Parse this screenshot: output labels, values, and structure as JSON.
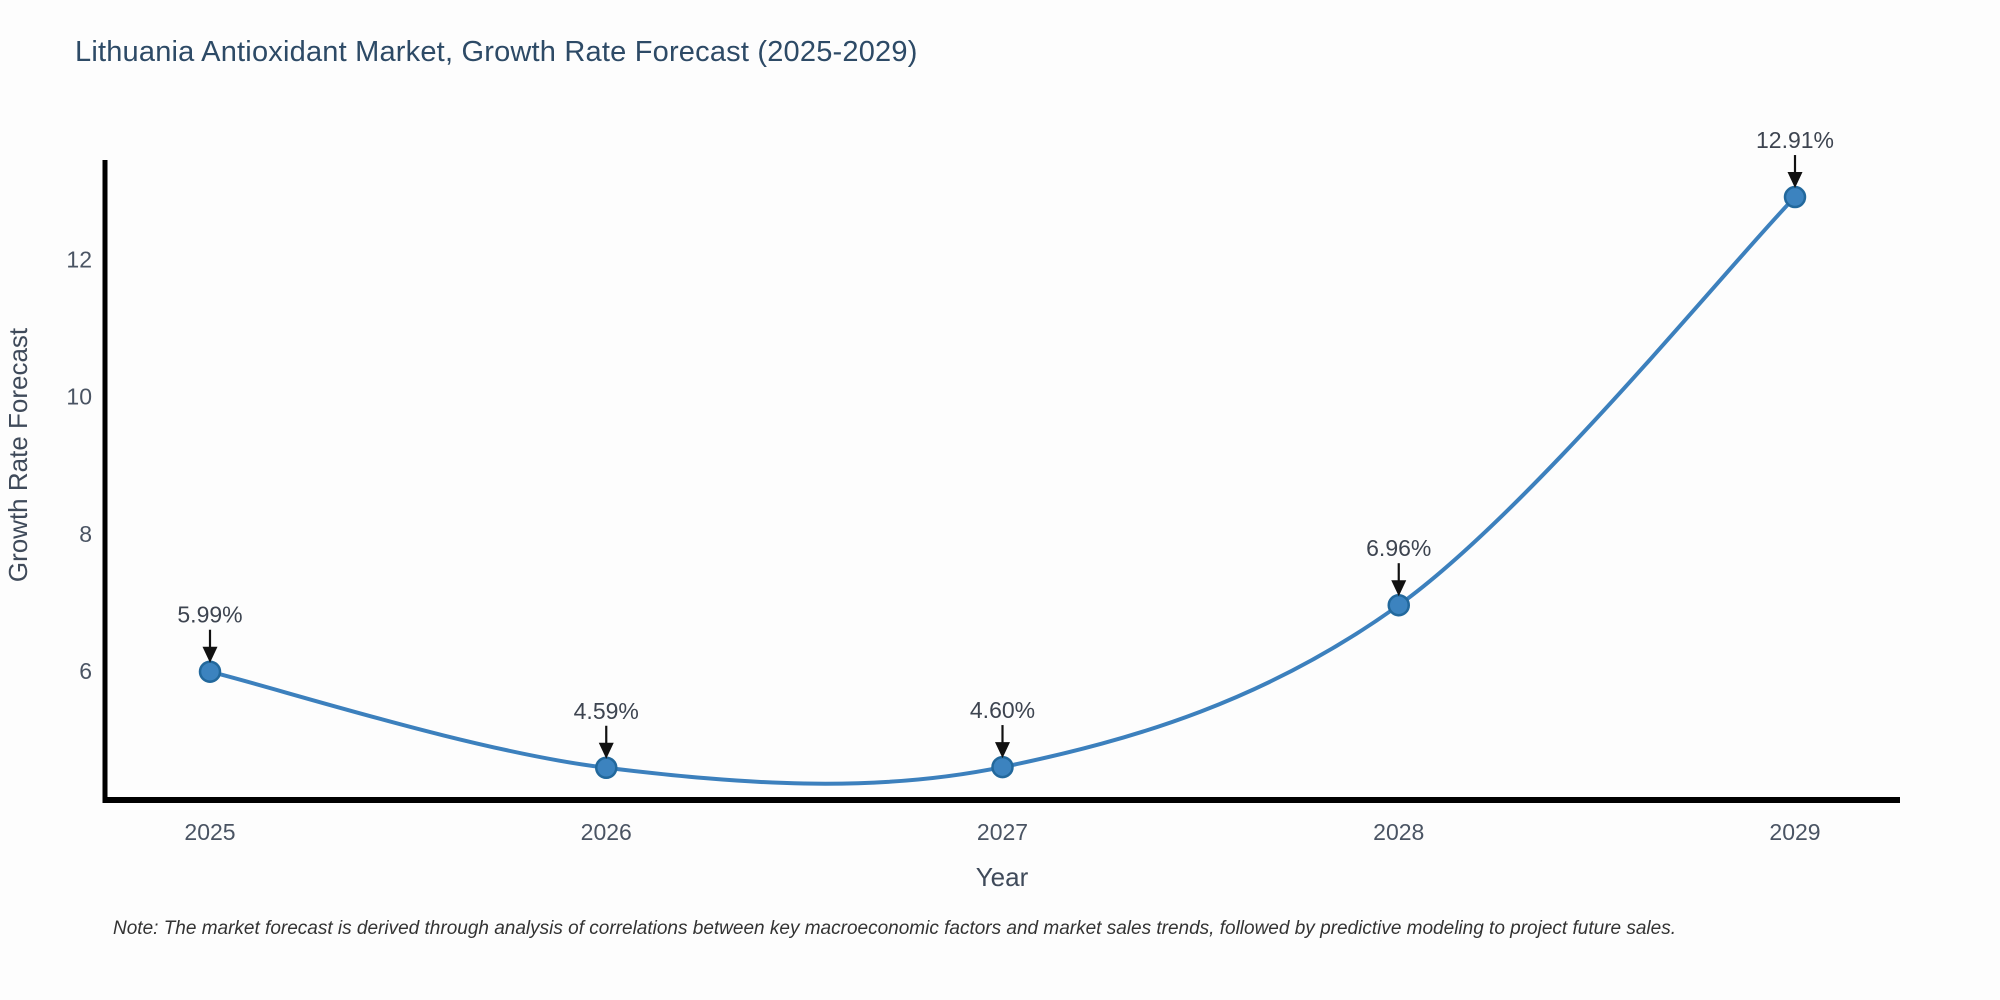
{
  "note": "Note: The market forecast is derived through analysis of correlations between key macroeconomic factors and market sales trends, followed by predictive modeling to project future sales.",
  "chart_data": {
    "type": "line",
    "curve": "spline",
    "title": "Lithuania Antioxidant Market, Growth Rate Forecast (2025-2029)",
    "xlabel": "Year",
    "ylabel": "Growth Rate Forecast",
    "categories": [
      "2025",
      "2026",
      "2027",
      "2028",
      "2029"
    ],
    "values": [
      5.99,
      4.59,
      4.6,
      6.96,
      12.91
    ],
    "point_labels": [
      "5.99%",
      "4.59%",
      "4.60%",
      "6.96%",
      "12.91%"
    ],
    "yticks": [
      6,
      8,
      10,
      12
    ],
    "ylim": [
      4.12,
      13.45
    ],
    "grid": false,
    "legend_position": "none",
    "annotation_style": "arrow-down-to-point",
    "colors": {
      "line": "#3c80bd",
      "marker_fill": "#3c83bf",
      "marker_edge": "#22689c",
      "axis": "#000000",
      "arrow": "#111111",
      "title_text": "#2d4a66",
      "tick_text": "#4a5463",
      "annotation_text": "#3d4450",
      "axis_label_text": "#3f4a5a",
      "note_text": "#333333",
      "background": "#fdfdfd"
    }
  }
}
